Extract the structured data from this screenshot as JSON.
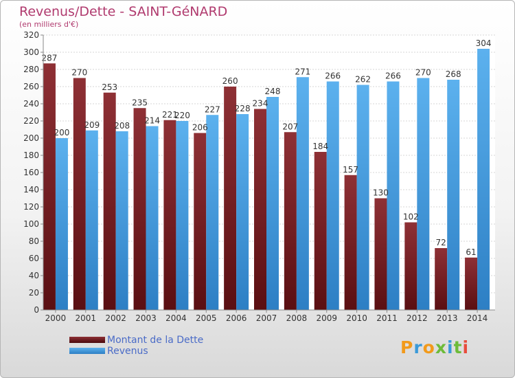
{
  "header": {
    "title": "Revenus/Dette - SAINT-GéNARD",
    "subtitle": "(en milliers d'€)"
  },
  "legend": [
    {
      "label": "Montant de la Dette",
      "color": "#7a1f22"
    },
    {
      "label": "Revenus",
      "color": "#4da3e6"
    }
  ],
  "logo": {
    "letters": [
      "P",
      "r",
      "o",
      "x",
      "i",
      "t",
      "i"
    ],
    "colors": [
      "#f29a1b",
      "#3a9ad9",
      "#f29a1b",
      "#6dbb3a",
      "#3a9ad9",
      "#6dbb3a",
      "#e84c3c"
    ]
  },
  "chart_data": {
    "type": "bar",
    "title": "Revenus/Dette - SAINT-GéNARD",
    "subtitle": "(en milliers d'€)",
    "categories": [
      "2000",
      "2001",
      "2002",
      "2003",
      "2004",
      "2005",
      "2006",
      "2007",
      "2008",
      "2009",
      "2010",
      "2011",
      "2012",
      "2013",
      "2014"
    ],
    "series": [
      {
        "name": "Montant de la Dette",
        "color": "#7a1f22",
        "values": [
          287,
          270,
          253,
          235,
          221,
          206,
          260,
          234,
          207,
          184,
          157,
          130,
          102,
          72,
          61
        ]
      },
      {
        "name": "Revenus",
        "color": "#4da3e6",
        "values": [
          200,
          209,
          208,
          214,
          220,
          227,
          228,
          248,
          271,
          266,
          262,
          266,
          270,
          268,
          304
        ]
      }
    ],
    "ylim": [
      0,
      320
    ],
    "yticks": [
      0,
      20,
      40,
      60,
      80,
      100,
      120,
      140,
      160,
      180,
      200,
      220,
      240,
      260,
      280,
      300,
      320
    ],
    "grid": true,
    "legend_position": "bottom-left"
  }
}
